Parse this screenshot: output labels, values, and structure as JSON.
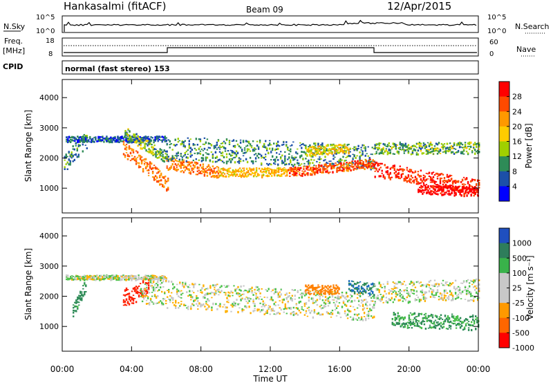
{
  "header": {
    "station": "Hankasalmi (fitACF)",
    "beam": "Beam 09",
    "date": "12/Apr/2015"
  },
  "panels": {
    "nsky_label": "N.Sky",
    "nsearch_label": "N.Search",
    "nsky_ticks": [
      "10^5",
      "10^0"
    ],
    "nsearch_ticks": [
      "10^5",
      "10^0"
    ],
    "freq_label_1": "Freq.",
    "freq_label_2": "[MHz]",
    "freq_ticks": [
      "18",
      "8"
    ],
    "nave_label": "Nave",
    "nave_ticks": [
      "60",
      "0"
    ],
    "cpid_label": "CPID",
    "cpid_text": "normal (fast stereo) 153"
  },
  "axes": {
    "x_label": "Time UT",
    "x_ticks": [
      "00:00",
      "04:00",
      "08:00",
      "12:00",
      "16:00",
      "20:00",
      "00:00"
    ],
    "y_label": "Slant Range [km]",
    "y_ticks": [
      "1000",
      "2000",
      "3000",
      "4000"
    ]
  },
  "colorbars": {
    "power": {
      "label": "Power [dB]",
      "ticks": [
        "28",
        "24",
        "20",
        "16",
        "12",
        "8",
        "4"
      ],
      "colors": [
        "#ff0000",
        "#ff4a00",
        "#ff9900",
        "#ffcc00",
        "#a0d000",
        "#2e8b57",
        "#1c4fa8",
        "#0000ff"
      ]
    },
    "velocity": {
      "label": "Velocity [m s⁻¹]",
      "ticks": [
        "1000",
        "500",
        "100",
        "25",
        "-25",
        "-100",
        "-500",
        "-1000"
      ],
      "colors": [
        "#1f4fbf",
        "#2e7d5b",
        "#39b24a",
        "#c8c8c8",
        "#c8c8c8",
        "#ff9900",
        "#ff6600",
        "#ff0000"
      ]
    }
  },
  "chart_data": [
    {
      "type": "heatmap",
      "title": "Power [dB]",
      "xlabel": "Time UT",
      "ylabel": "Slant Range [km]",
      "xlim": [
        0,
        24
      ],
      "ylim": [
        180,
        4600
      ],
      "value_range": [
        3,
        30
      ],
      "bands": [
        {
          "t": [
            0.1,
            1.4
          ],
          "center": [
            1800,
            2600
          ],
          "width": 600,
          "value": 10
        },
        {
          "t": [
            0.2,
            6.0
          ],
          "center": [
            2600,
            2600
          ],
          "width": 200,
          "value": 8
        },
        {
          "t": [
            3.5,
            6.1
          ],
          "center": [
            2300,
            1100
          ],
          "width": 500,
          "value": 22
        },
        {
          "t": [
            3.6,
            6.0
          ],
          "center": [
            2800,
            2000
          ],
          "width": 400,
          "value": 12
        },
        {
          "t": [
            6.0,
            9.0
          ],
          "center": [
            1800,
            1500
          ],
          "width": 400,
          "value": 22
        },
        {
          "t": [
            6.0,
            18.0
          ],
          "center": [
            2300,
            2000
          ],
          "width": 800,
          "value": 10
        },
        {
          "t": [
            9.0,
            13.0
          ],
          "center": [
            1500,
            1500
          ],
          "width": 300,
          "value": 18
        },
        {
          "t": [
            13.0,
            18.0
          ],
          "center": [
            1500,
            1800
          ],
          "width": 300,
          "value": 24
        },
        {
          "t": [
            14.0,
            16.5
          ],
          "center": [
            2200,
            2300
          ],
          "width": 300,
          "value": 16
        },
        {
          "t": [
            18.0,
            24.0
          ],
          "center": [
            1600,
            1000
          ],
          "width": 500,
          "value": 26
        },
        {
          "t": [
            18.0,
            24.0
          ],
          "center": [
            2300,
            2300
          ],
          "width": 400,
          "value": 12
        },
        {
          "t": [
            20.5,
            24.0
          ],
          "center": [
            950,
            850
          ],
          "width": 300,
          "value": 29
        }
      ]
    },
    {
      "type": "heatmap",
      "title": "Velocity [m s⁻¹]",
      "xlabel": "Time UT",
      "ylabel": "Slant Range [km]",
      "xlim": [
        0,
        24
      ],
      "ylim": [
        180,
        4600
      ],
      "value_range": [
        -1000,
        1000
      ],
      "bands": [
        {
          "t": [
            0.2,
            6.0
          ],
          "center": [
            2600,
            2600
          ],
          "width": 150,
          "value": 0
        },
        {
          "t": [
            0.6,
            1.4
          ],
          "center": [
            1500,
            2400
          ],
          "width": 400,
          "value": 150
        },
        {
          "t": [
            3.5,
            5.0
          ],
          "center": [
            1900,
            2300
          ],
          "width": 600,
          "value": -600
        },
        {
          "t": [
            4.5,
            18.0
          ],
          "center": [
            2100,
            1600
          ],
          "width": 900,
          "value": 0
        },
        {
          "t": [
            14.0,
            16.0
          ],
          "center": [
            2200,
            2200
          ],
          "width": 300,
          "value": -300
        },
        {
          "t": [
            16.5,
            18.0
          ],
          "center": [
            2300,
            2200
          ],
          "width": 400,
          "value": 300
        },
        {
          "t": [
            18.0,
            24.0
          ],
          "center": [
            2100,
            2200
          ],
          "width": 700,
          "value": 0
        },
        {
          "t": [
            19.0,
            24.0
          ],
          "center": [
            1200,
            1100
          ],
          "width": 500,
          "value": 120
        }
      ]
    },
    {
      "type": "line",
      "title": "N.Sky",
      "xlim": [
        0,
        24
      ],
      "series": [
        {
          "name": "N.Sky",
          "values": "noise level trace"
        }
      ]
    }
  ]
}
